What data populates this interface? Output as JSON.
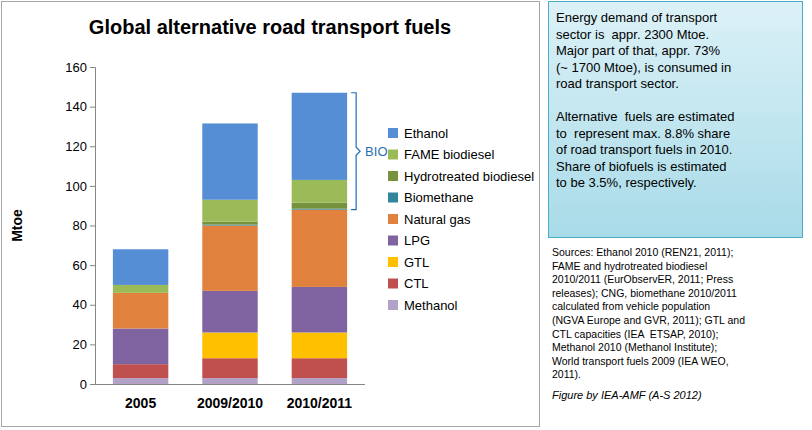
{
  "chart_data": {
    "type": "bar",
    "stacked": true,
    "title": "Global alternative road transport fuels",
    "y_label": "Mtoe",
    "categories": [
      "2005",
      "2009/2010",
      "2010/2011"
    ],
    "series": [
      {
        "name": "Methanol",
        "color": "#b3a2c7",
        "values": [
          3,
          3,
          3
        ]
      },
      {
        "name": "CTL",
        "color": "#c0504d",
        "values": [
          7,
          10,
          10
        ]
      },
      {
        "name": "GTL",
        "color": "#ffc000",
        "values": [
          0,
          13,
          13
        ]
      },
      {
        "name": "LPG",
        "color": "#8064a2",
        "values": [
          18,
          21,
          23
        ]
      },
      {
        "name": "Natural gas",
        "color": "#e0823d",
        "values": [
          18,
          33,
          39
        ]
      },
      {
        "name": "Biomethane",
        "color": "#31859c",
        "values": [
          0,
          0.5,
          0.5
        ]
      },
      {
        "name": "Hydrotreated biodiesel",
        "color": "#76923c",
        "values": [
          0,
          1.5,
          3
        ]
      },
      {
        "name": "FAME biodiesel",
        "color": "#9bbb59",
        "values": [
          4,
          11,
          11.5
        ]
      },
      {
        "name": "Ethanol",
        "color": "#558ed5",
        "values": [
          18,
          38.5,
          44
        ]
      }
    ],
    "ylim": [
      0,
      160
    ],
    "yticks": [
      0,
      20,
      40,
      60,
      80,
      100,
      120,
      140,
      160
    ],
    "grid": false,
    "legend": "right",
    "annotations": [
      {
        "text": "BIO"
      }
    ]
  },
  "text_box": {
    "paragraphs": [
      [
        "Energy demand of transport",
        "sector is  appr. 2300 Mtoe.",
        "Major part of that, appr. 73%",
        "(~ 1700 Mtoe), is consumed in",
        "road transport sector."
      ],
      [
        "Alternative  fuels are estimated",
        "to  represent max. 8.8% share",
        "of road transport fuels in 2010.",
        "Share of biofuels is estimated",
        "to be 3.5%, respectively."
      ]
    ]
  },
  "sources": [
    "Sources: Ethanol 2010 (REN21, 2011);",
    "FAME and hydrotreated biodiesel",
    "2010/2011 (EurObservER, 2011; Press",
    "releases); CNG, biomethane 2010/2011",
    "calculated from vehicle population",
    "(NGVA Europe and GVR, 2011); GTL and",
    "CTL capacities (IEA  ETSAP, 2010);",
    "Methanol 2010 (Methanol Institute);",
    "World transport fuels 2009 (IEA WEO,",
    "2011)."
  ],
  "credit": "Figure by IEA-AMF (A-S 2012)"
}
